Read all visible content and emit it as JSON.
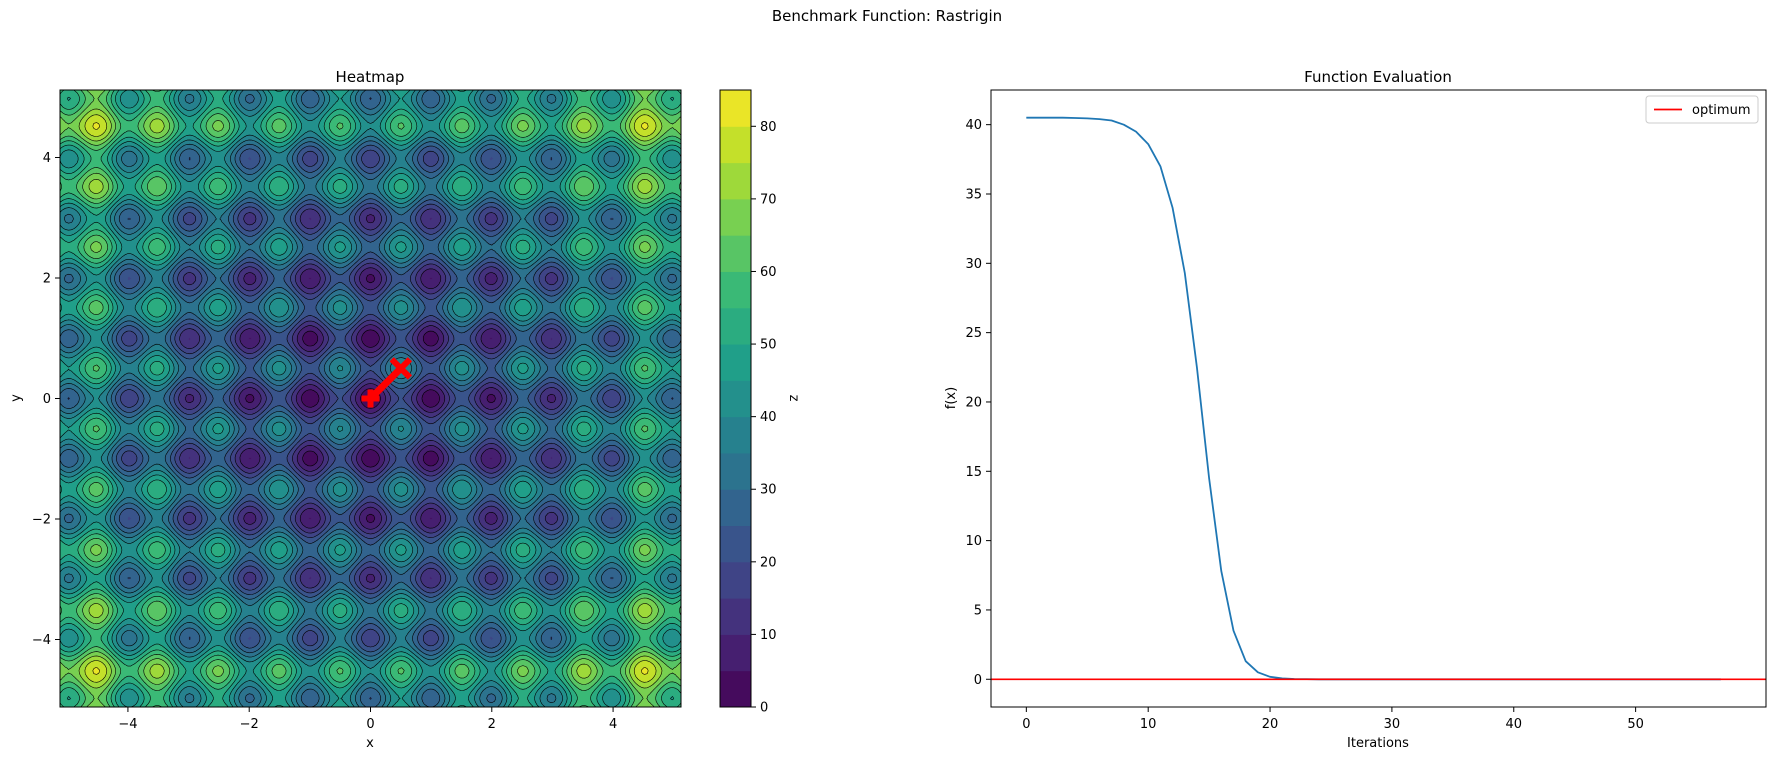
{
  "figure": {
    "suptitle": "Benchmark Function: Rastrigin"
  },
  "colors": {
    "line": "#1f77b4",
    "optimum": "#ff0000",
    "path": "#ff0000",
    "contour_lines": "#000000"
  },
  "chart_data": [
    {
      "type": "heatmap",
      "title": "Heatmap",
      "xlabel": "x",
      "ylabel": "y",
      "function": "rastrigin",
      "xlim": [
        -5.12,
        5.12
      ],
      "ylim": [
        -5.12,
        5.12
      ],
      "xticks": [
        -4,
        -2,
        0,
        2,
        4
      ],
      "yticks": [
        -4,
        -2,
        0,
        2,
        4
      ],
      "colormap": "viridis",
      "colorbar": {
        "label": "z",
        "range": [
          0,
          85
        ],
        "levels": [
          0,
          5,
          10,
          15,
          20,
          25,
          30,
          35,
          40,
          45,
          50,
          55,
          60,
          65,
          70,
          75,
          80,
          85
        ],
        "ticks": [
          0,
          10,
          20,
          30,
          40,
          50,
          60,
          70,
          80
        ]
      },
      "search_path": [
        [
          0.5,
          0.5
        ],
        [
          0.0,
          0.0
        ]
      ]
    },
    {
      "type": "line",
      "title": "Function Evaluation",
      "xlabel": "Iterations",
      "ylabel": "f(x)",
      "xlim": [
        -2.9,
        60.7
      ],
      "ylim": [
        -2.0,
        42.5
      ],
      "xticks": [
        0,
        10,
        20,
        30,
        40,
        50
      ],
      "yticks": [
        0,
        5,
        10,
        15,
        20,
        25,
        30,
        35,
        40
      ],
      "legend": {
        "position": "upper right",
        "entries": [
          "optimum"
        ]
      },
      "series": [
        {
          "x": [
            0,
            1,
            2,
            3,
            4,
            5,
            6,
            7,
            8,
            9,
            10,
            11,
            12,
            13,
            14,
            15,
            16,
            17,
            18,
            19,
            20,
            21,
            22,
            23,
            24,
            25,
            26,
            27,
            28,
            29,
            30,
            31,
            32,
            33,
            34,
            35,
            36,
            37,
            38,
            39,
            40,
            41,
            42,
            43,
            44,
            45,
            46,
            47,
            48,
            49,
            50,
            51,
            52,
            53,
            54,
            55,
            56,
            57
          ],
          "values": [
            40.5,
            40.5,
            40.5,
            40.5,
            40.48,
            40.45,
            40.4,
            40.3,
            40.0,
            39.5,
            38.6,
            37.0,
            34.0,
            29.3,
            22.5,
            14.5,
            7.8,
            3.5,
            1.3,
            0.5,
            0.18,
            0.06,
            0.02,
            0.01,
            0,
            0,
            0,
            0,
            0,
            0,
            0,
            0,
            0,
            0,
            0,
            0,
            0,
            0,
            0,
            0,
            0,
            0,
            0,
            0,
            0,
            0,
            0,
            0,
            0,
            0,
            0,
            0,
            0,
            0,
            0,
            0,
            0,
            0
          ]
        },
        {
          "name": "optimum",
          "type": "hline",
          "y": 0
        }
      ]
    }
  ]
}
